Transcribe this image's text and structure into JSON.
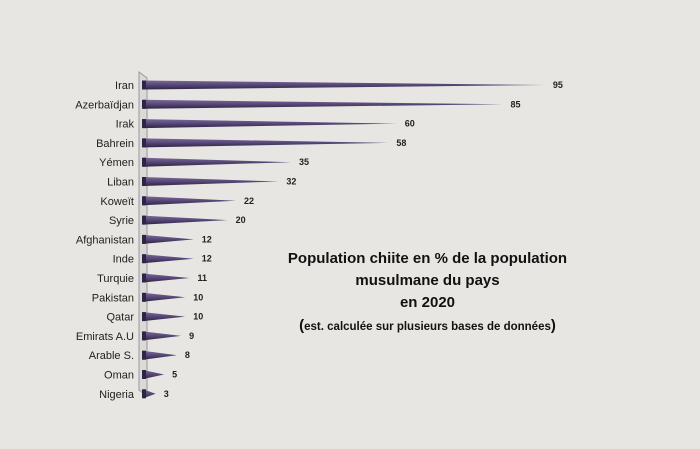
{
  "chart_data": {
    "type": "bar",
    "orientation": "horizontal",
    "title": [
      "Population chiite en % de la population",
      "musulmane du pays",
      "en 2020"
    ],
    "subtitle": "est. calculée sur plusieurs bases de données",
    "categories": [
      "Iran",
      "Azerbaïdjan",
      "Irak",
      "Bahrein",
      "Yémen",
      "Liban",
      "Koweït",
      "Syrie",
      "Afghanistan",
      "Inde",
      "Turquie",
      "Pakistan",
      "Qatar",
      "Emirats A.U",
      "Arable S.",
      "Oman",
      "Nigeria"
    ],
    "values": [
      95,
      85,
      60,
      58,
      35,
      32,
      22,
      20,
      12,
      12,
      11,
      10,
      10,
      9,
      8,
      5,
      3
    ],
    "xlim": [
      0,
      100
    ],
    "grid": false,
    "legend": "none",
    "bar_color": "#5a4a7a",
    "bar_shade": "#2e2444"
  }
}
